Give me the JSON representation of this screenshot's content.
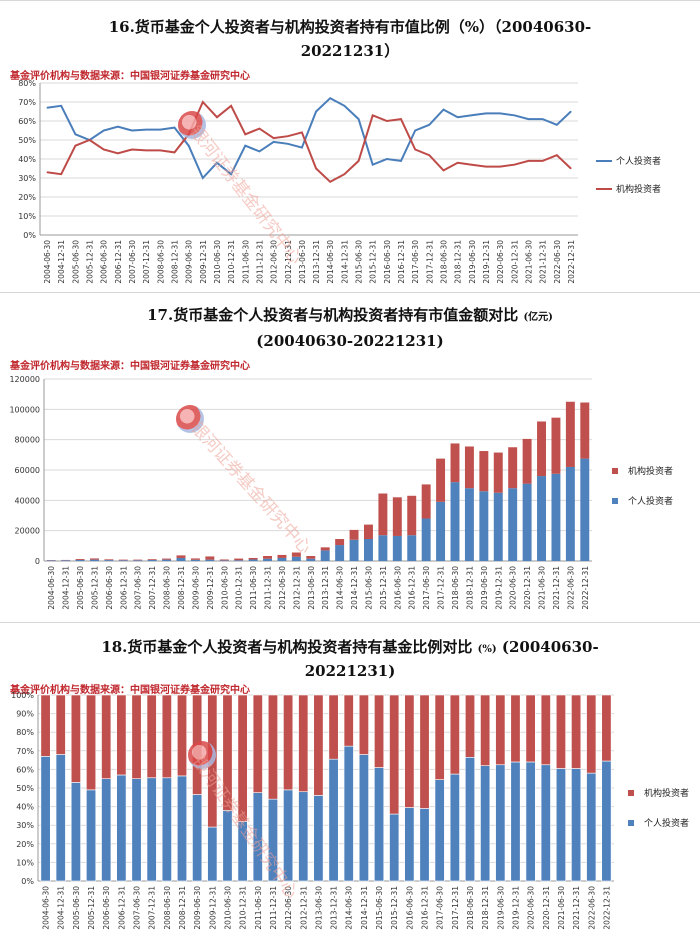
{
  "charts": [
    {
      "title": "16.货币基金个人投资者与机构投资者持有市值比例（%）（20040630-20221231）",
      "title_line1": "16.货币基金个人投资者与机构投资者持有市值比例（%）（20040630-",
      "title_line2": "20221231）",
      "source": "基金评价机构与数据来源：中国银河证券基金研究中心",
      "watermark": "银河证券基金研究中心"
    },
    {
      "title_line1": "17.货币基金个人投资者与机构投资者持有市值金额对比",
      "title_unit": "(亿元)",
      "title_line2": "(20040630-20221231)",
      "source": "基金评价机构与数据来源：中国银河证券基金研究中心",
      "watermark": "银河证券基金研究中心"
    },
    {
      "title_line1": "18.货币基金个人投资者与机构投资者持有基金比例对比",
      "title_unit": "(%)",
      "title_line1b": "(20040630-",
      "title_line2": "20221231)",
      "source": "基金评价机构与数据来源：中国银河证券基金研究中心",
      "watermark": "银河证券基金研究中心"
    }
  ],
  "chart_data": [
    {
      "type": "line",
      "categories": [
        "2004-06-30",
        "2004-12-31",
        "2005-06-30",
        "2005-12-31",
        "2006-06-30",
        "2006-12-31",
        "2007-06-30",
        "2007-12-31",
        "2008-06-30",
        "2008-12-31",
        "2009-06-30",
        "2009-12-31",
        "2010-06-30",
        "2010-12-31",
        "2011-06-30",
        "2011-12-31",
        "2012-06-30",
        "2012-12-31",
        "2013-06-30",
        "2013-12-31",
        "2014-06-30",
        "2014-12-31",
        "2015-06-30",
        "2015-12-31",
        "2016-06-30",
        "2016-12-31",
        "2017-06-30",
        "2017-12-31",
        "2018-06-30",
        "2018-12-31",
        "2019-06-30",
        "2019-12-31",
        "2020-06-30",
        "2020-12-31",
        "2021-06-30",
        "2021-12-31",
        "2022-06-30",
        "2022-12-31"
      ],
      "series": [
        {
          "name": "个人投资者",
          "color": "#4a7ebb",
          "values": [
            67,
            68,
            53,
            50,
            55,
            57,
            55,
            55.5,
            55.5,
            56.5,
            47,
            30,
            38,
            32,
            47,
            44,
            49,
            48,
            46,
            65,
            72,
            68,
            61,
            37,
            40,
            39,
            55,
            58,
            66,
            62,
            63,
            64,
            64,
            63,
            61,
            61,
            58,
            65
          ]
        },
        {
          "name": "机构投资者",
          "color": "#be4b48",
          "values": [
            33,
            32,
            47,
            50,
            45,
            43,
            45,
            44.5,
            44.5,
            43.5,
            53,
            70,
            62,
            68,
            53,
            56,
            51,
            52,
            54,
            35,
            28,
            32,
            39,
            63,
            60,
            61,
            45,
            42,
            34,
            38,
            37,
            36,
            36,
            37,
            39,
            39,
            42,
            35
          ]
        }
      ],
      "ylim": [
        0,
        80
      ],
      "yticks": [
        "0%",
        "10%",
        "20%",
        "30%",
        "40%",
        "50%",
        "60%",
        "70%",
        "80%"
      ],
      "legend": "right",
      "grid": true
    },
    {
      "type": "bar",
      "stacked": true,
      "categories": [
        "2004-06-30",
        "2004-12-31",
        "2005-06-30",
        "2005-12-31",
        "2006-06-30",
        "2006-12-31",
        "2007-06-30",
        "2007-12-31",
        "2008-06-30",
        "2008-12-31",
        "2009-06-30",
        "2009-12-31",
        "2010-06-30",
        "2010-12-31",
        "2011-06-30",
        "2011-12-31",
        "2012-06-30",
        "2012-12-31",
        "2013-06-30",
        "2013-12-31",
        "2014-06-30",
        "2014-12-31",
        "2015-06-30",
        "2015-12-31",
        "2016-06-30",
        "2016-12-31",
        "2017-06-30",
        "2017-12-31",
        "2018-06-30",
        "2018-12-31",
        "2019-06-30",
        "2019-12-31",
        "2020-06-30",
        "2020-12-31",
        "2021-06-30",
        "2021-12-31",
        "2022-06-30",
        "2022-12-31"
      ],
      "series": [
        {
          "name": "个人投资者",
          "color": "#4f81bd",
          "values": [
            400,
            500,
            700,
            900,
            600,
            500,
            500,
            700,
            900,
            2000,
            800,
            900,
            400,
            500,
            1000,
            1500,
            2000,
            2800,
            1500,
            7000,
            10500,
            14000,
            14500,
            17000,
            16500,
            17000,
            28000,
            39000,
            52000,
            48000,
            46000,
            45000,
            48000,
            51000,
            56000,
            57500,
            62000,
            67500
          ]
        },
        {
          "name": "机构投资者",
          "color": "#c0504d",
          "values": [
            200,
            200,
            600,
            800,
            500,
            400,
            400,
            500,
            700,
            1700,
            900,
            2100,
            600,
            1100,
            1000,
            1800,
            2000,
            2800,
            1800,
            2000,
            4000,
            6500,
            9500,
            27500,
            25500,
            26000,
            22500,
            28500,
            25500,
            27500,
            26500,
            26500,
            27000,
            29500,
            36000,
            37000,
            43000,
            37000
          ]
        }
      ],
      "ylim": [
        0,
        120000
      ],
      "yticks": [
        "0",
        "20000",
        "40000",
        "60000",
        "80000",
        "100000",
        "120000"
      ],
      "legend": "right",
      "grid": true
    },
    {
      "type": "bar",
      "stacked": true,
      "percent": true,
      "categories": [
        "2004-06-30",
        "2004-12-31",
        "2005-06-30",
        "2005-12-31",
        "2006-06-30",
        "2006-12-31",
        "2007-06-30",
        "2007-12-31",
        "2008-06-30",
        "2008-12-31",
        "2009-06-30",
        "2009-12-31",
        "2010-06-30",
        "2010-12-31",
        "2011-06-30",
        "2011-12-31",
        "2012-06-30",
        "2012-12-31",
        "2013-06-30",
        "2013-12-31",
        "2014-06-30",
        "2014-12-31",
        "2015-06-30",
        "2015-12-31",
        "2016-06-30",
        "2016-12-31",
        "2017-06-30",
        "2017-12-31",
        "2018-06-30",
        "2018-12-31",
        "2019-06-30",
        "2019-12-31",
        "2020-06-30",
        "2020-12-31",
        "2021-06-30",
        "2021-12-31",
        "2022-06-30",
        "2022-12-31"
      ],
      "series": [
        {
          "name": "个人投资者",
          "color": "#4f81bd",
          "values": [
            67,
            68,
            53,
            49,
            55,
            57,
            55,
            55.5,
            55.5,
            56.5,
            46.5,
            29,
            38,
            32,
            47.5,
            44,
            49,
            48,
            46,
            65.5,
            72.5,
            68,
            61,
            36,
            39.5,
            39,
            54.5,
            57.5,
            66.5,
            62,
            62.5,
            64,
            64,
            62.5,
            60.5,
            60.5,
            58,
            64.5
          ]
        },
        {
          "name": "机构投资者",
          "color": "#c0504d",
          "values": [
            33,
            32,
            47,
            51,
            45,
            43,
            45,
            44.5,
            44.5,
            43.5,
            53.5,
            71,
            62,
            68,
            52.5,
            56,
            51,
            52,
            54,
            34.5,
            27.5,
            32,
            39,
            64,
            60.5,
            61,
            45.5,
            42.5,
            33.5,
            38,
            37.5,
            36,
            36,
            37.5,
            39.5,
            39.5,
            42,
            35.5
          ]
        }
      ],
      "ylim": [
        0,
        100
      ],
      "yticks": [
        "0%",
        "10%",
        "20%",
        "30%",
        "40%",
        "50%",
        "60%",
        "70%",
        "80%",
        "90%",
        "100%"
      ],
      "legend": "right",
      "grid": true
    }
  ]
}
